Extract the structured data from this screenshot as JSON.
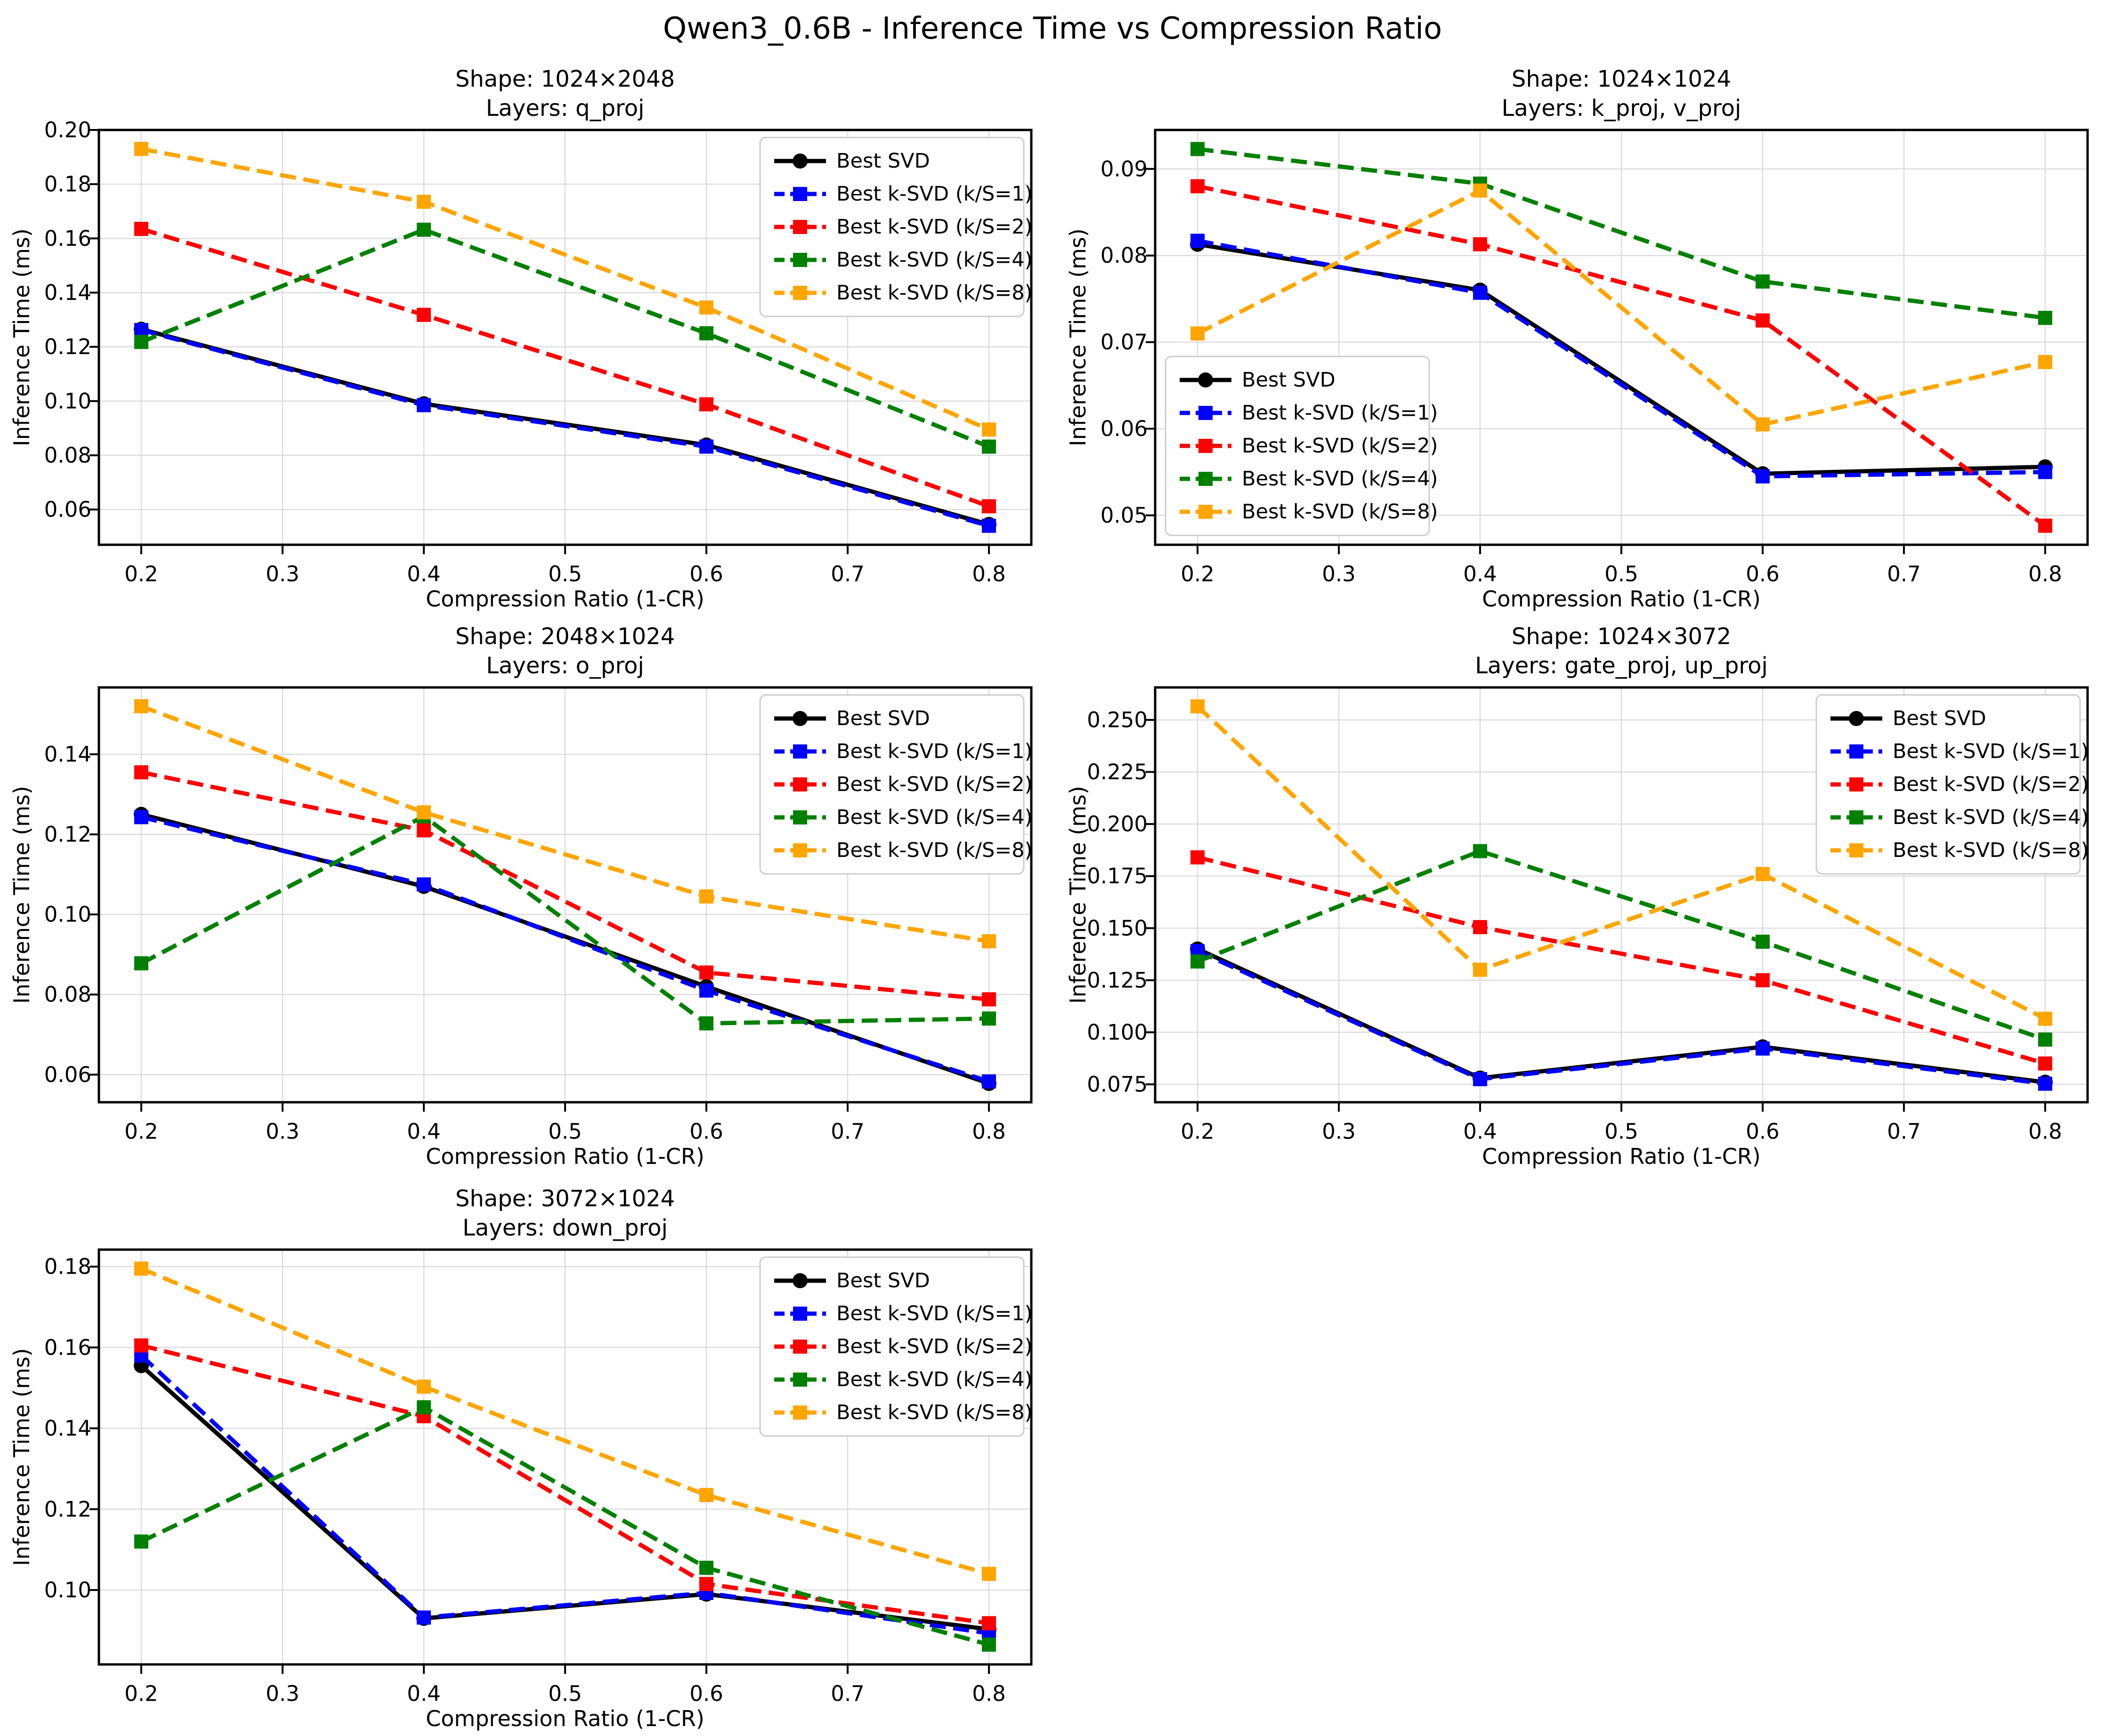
{
  "page_title": "Qwen3_0.6B - Inference Time vs Compression Ratio",
  "axis": {
    "xlabel": "Compression Ratio (1-CR)",
    "ylabel": "Inference Time (ms)",
    "xticks": [
      0.2,
      0.3,
      0.4,
      0.5,
      0.6,
      0.7,
      0.8
    ],
    "xtick_decimals": 1,
    "xlim": [
      0.17,
      0.83
    ]
  },
  "colors": {
    "grid": "#dcdcdc",
    "spine": "#000000",
    "legend_border": "#cccccc",
    "background": "#ffffff",
    "best_svd": "#000000",
    "ksvd_1": "#0000ff",
    "ksvd_2": "#ff0000",
    "ksvd_4": "#008000",
    "ksvd_8": "#ffa500"
  },
  "series_meta": [
    {
      "name": "Best SVD",
      "color": "#000000",
      "marker": "circle",
      "dashed": false
    },
    {
      "name": "Best k-SVD (k/S=1)",
      "color": "#0000ff",
      "marker": "square",
      "dashed": true
    },
    {
      "name": "Best k-SVD (k/S=2)",
      "color": "#ff0000",
      "marker": "square",
      "dashed": true
    },
    {
      "name": "Best k-SVD (k/S=4)",
      "color": "#008000",
      "marker": "square",
      "dashed": true
    },
    {
      "name": "Best k-SVD (k/S=8)",
      "color": "#ffa500",
      "marker": "square",
      "dashed": true
    }
  ],
  "chart_data": [
    {
      "type": "line",
      "title_shape": "Shape: 1024×2048",
      "title_layers": "Layers: q_proj",
      "x": [
        0.2,
        0.4,
        0.6,
        0.8
      ],
      "ylim": [
        0.047,
        0.2
      ],
      "yticks": [
        0.06,
        0.08,
        0.1,
        0.12,
        0.14,
        0.16,
        0.18,
        0.2
      ],
      "ytick_decimals": 2,
      "legend_loc": "upper-right",
      "series": [
        {
          "name": "Best SVD",
          "values": [
            0.1265,
            0.099,
            0.0838,
            0.0545
          ]
        },
        {
          "name": "Best k-SVD (k/S=1)",
          "values": [
            0.1262,
            0.0985,
            0.0832,
            0.054
          ]
        },
        {
          "name": "Best k-SVD (k/S=2)",
          "values": [
            0.1635,
            0.1318,
            0.0988,
            0.0612
          ]
        },
        {
          "name": "Best k-SVD (k/S=4)",
          "values": [
            0.1218,
            0.1632,
            0.125,
            0.0832
          ]
        },
        {
          "name": "Best k-SVD (k/S=8)",
          "values": [
            0.193,
            0.1735,
            0.1345,
            0.0895
          ]
        }
      ]
    },
    {
      "type": "line",
      "title_shape": "Shape: 1024×1024",
      "title_layers": "Layers: k_proj, v_proj",
      "x": [
        0.2,
        0.4,
        0.6,
        0.8
      ],
      "ylim": [
        0.0466,
        0.0945
      ],
      "yticks": [
        0.05,
        0.06,
        0.07,
        0.08,
        0.09
      ],
      "ytick_decimals": 2,
      "legend_loc": "lower-left",
      "series": [
        {
          "name": "Best SVD",
          "values": [
            0.0813,
            0.076,
            0.0548,
            0.0556
          ]
        },
        {
          "name": "Best k-SVD (k/S=1)",
          "values": [
            0.0817,
            0.0757,
            0.0545,
            0.055
          ]
        },
        {
          "name": "Best k-SVD (k/S=2)",
          "values": [
            0.088,
            0.0813,
            0.0725,
            0.0488
          ]
        },
        {
          "name": "Best k-SVD (k/S=4)",
          "values": [
            0.0923,
            0.0883,
            0.077,
            0.0728
          ]
        },
        {
          "name": "Best k-SVD (k/S=8)",
          "values": [
            0.071,
            0.0875,
            0.0605,
            0.0677
          ]
        }
      ]
    },
    {
      "type": "line",
      "title_shape": "Shape: 2048×1024",
      "title_layers": "Layers: o_proj",
      "x": [
        0.2,
        0.4,
        0.6,
        0.8
      ],
      "ylim": [
        0.0531,
        0.1567
      ],
      "yticks": [
        0.06,
        0.08,
        0.1,
        0.12,
        0.14
      ],
      "ytick_decimals": 2,
      "legend_loc": "upper-right",
      "series": [
        {
          "name": "Best SVD",
          "values": [
            0.125,
            0.107,
            0.082,
            0.0578
          ]
        },
        {
          "name": "Best k-SVD (k/S=1)",
          "values": [
            0.1243,
            0.1075,
            0.081,
            0.0583
          ]
        },
        {
          "name": "Best k-SVD (k/S=2)",
          "values": [
            0.1355,
            0.121,
            0.0855,
            0.0788
          ]
        },
        {
          "name": "Best k-SVD (k/S=4)",
          "values": [
            0.0878,
            0.1245,
            0.0728,
            0.074
          ]
        },
        {
          "name": "Best k-SVD (k/S=8)",
          "values": [
            0.152,
            0.1255,
            0.1045,
            0.0933
          ]
        }
      ]
    },
    {
      "type": "line",
      "title_shape": "Shape: 1024×3072",
      "title_layers": "Layers: gate_proj, up_proj",
      "x": [
        0.2,
        0.4,
        0.6,
        0.8
      ],
      "ylim": [
        0.0664,
        0.2656
      ],
      "yticks": [
        0.075,
        0.1,
        0.125,
        0.15,
        0.175,
        0.2,
        0.225,
        0.25
      ],
      "ytick_decimals": 3,
      "legend_loc": "upper-right",
      "series": [
        {
          "name": "Best SVD",
          "values": [
            0.14,
            0.078,
            0.093,
            0.076
          ]
        },
        {
          "name": "Best k-SVD (k/S=1)",
          "values": [
            0.139,
            0.0775,
            0.0922,
            0.0753
          ]
        },
        {
          "name": "Best k-SVD (k/S=2)",
          "values": [
            0.184,
            0.1505,
            0.125,
            0.085
          ]
        },
        {
          "name": "Best k-SVD (k/S=4)",
          "values": [
            0.134,
            0.187,
            0.1435,
            0.0965
          ]
        },
        {
          "name": "Best k-SVD (k/S=8)",
          "values": [
            0.2565,
            0.13,
            0.176,
            0.1065
          ]
        }
      ]
    },
    {
      "type": "line",
      "title_shape": "Shape: 3072×1024",
      "title_layers": "Layers: down_proj",
      "x": [
        0.2,
        0.4,
        0.6,
        0.8
      ],
      "ylim": [
        0.0816,
        0.1842
      ],
      "yticks": [
        0.1,
        0.12,
        0.14,
        0.16,
        0.18
      ],
      "ytick_decimals": 2,
      "legend_loc": "upper-right",
      "series": [
        {
          "name": "Best SVD",
          "values": [
            0.1555,
            0.093,
            0.099,
            0.0903
          ]
        },
        {
          "name": "Best k-SVD (k/S=1)",
          "values": [
            0.158,
            0.0932,
            0.0993,
            0.0893
          ]
        },
        {
          "name": "Best k-SVD (k/S=2)",
          "values": [
            0.1605,
            0.143,
            0.1015,
            0.0918
          ]
        },
        {
          "name": "Best k-SVD (k/S=4)",
          "values": [
            0.112,
            0.1452,
            0.1055,
            0.0865
          ]
        },
        {
          "name": "Best k-SVD (k/S=8)",
          "values": [
            0.1795,
            0.1503,
            0.1235,
            0.104
          ]
        }
      ]
    }
  ]
}
